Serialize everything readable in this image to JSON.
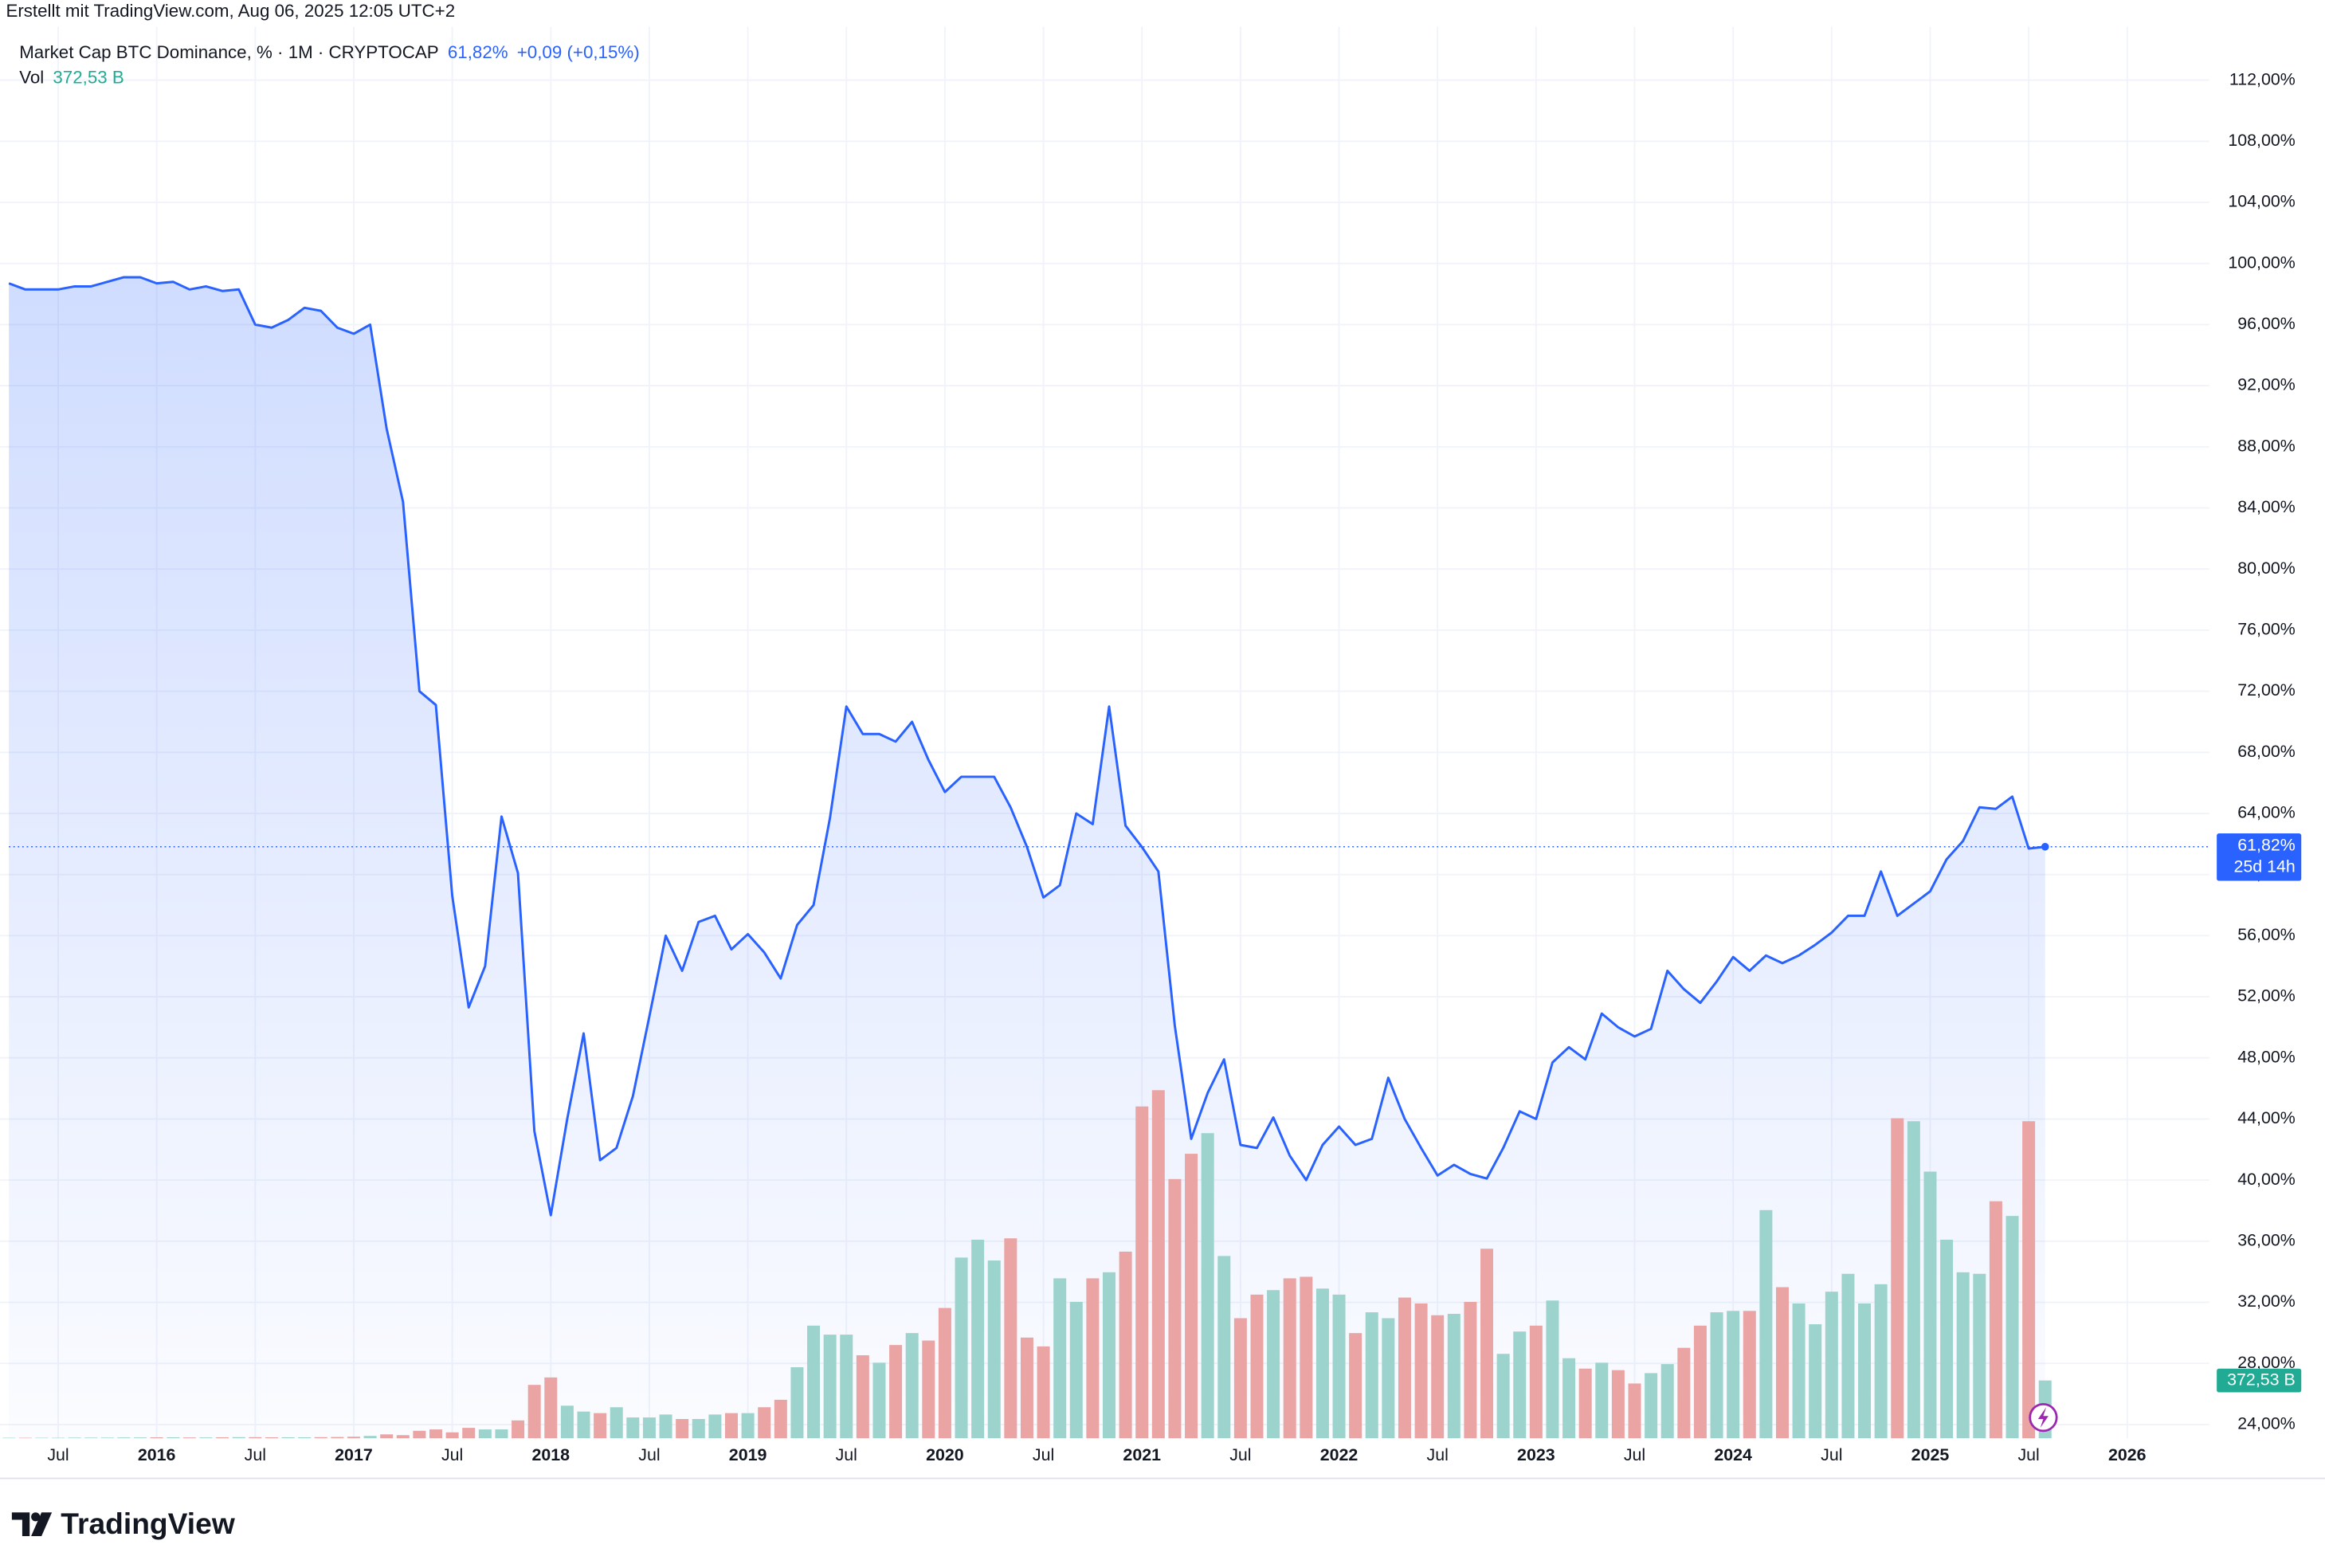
{
  "header": {
    "created": "Erstellt mit TradingView.com, Aug 06, 2025 12:05 UTC+2"
  },
  "footer": {
    "logo": "TradingView"
  },
  "chart_data": {
    "type": "line",
    "x": [
      "2015-04",
      "2015-05",
      "2015-06",
      "2015-07",
      "2015-08",
      "2015-09",
      "2015-10",
      "2015-11",
      "2015-12",
      "2016-01",
      "2016-02",
      "2016-03",
      "2016-04",
      "2016-05",
      "2016-06",
      "2016-07",
      "2016-08",
      "2016-09",
      "2016-10",
      "2016-11",
      "2016-12",
      "2017-01",
      "2017-02",
      "2017-03",
      "2017-04",
      "2017-05",
      "2017-06",
      "2017-07",
      "2017-08",
      "2017-09",
      "2017-10",
      "2017-11",
      "2017-12",
      "2018-01",
      "2018-02",
      "2018-03",
      "2018-04",
      "2018-05",
      "2018-06",
      "2018-07",
      "2018-08",
      "2018-09",
      "2018-10",
      "2018-11",
      "2018-12",
      "2019-01",
      "2019-02",
      "2019-03",
      "2019-04",
      "2019-05",
      "2019-06",
      "2019-07",
      "2019-08",
      "2019-09",
      "2019-10",
      "2019-11",
      "2019-12",
      "2020-01",
      "2020-02",
      "2020-03",
      "2020-04",
      "2020-05",
      "2020-06",
      "2020-07",
      "2020-08",
      "2020-09",
      "2020-10",
      "2020-11",
      "2020-12",
      "2021-01",
      "2021-02",
      "2021-03",
      "2021-04",
      "2021-05",
      "2021-06",
      "2021-07",
      "2021-08",
      "2021-09",
      "2021-10",
      "2021-11",
      "2021-12",
      "2022-01",
      "2022-02",
      "2022-03",
      "2022-04",
      "2022-05",
      "2022-06",
      "2022-07",
      "2022-08",
      "2022-09",
      "2022-10",
      "2022-11",
      "2022-12",
      "2023-01",
      "2023-02",
      "2023-03",
      "2023-04",
      "2023-05",
      "2023-06",
      "2023-07",
      "2023-08",
      "2023-09",
      "2023-10",
      "2023-11",
      "2023-12",
      "2024-01",
      "2024-02",
      "2024-03",
      "2024-04",
      "2024-05",
      "2024-06",
      "2024-07",
      "2024-08",
      "2024-09",
      "2024-10",
      "2024-11",
      "2024-12",
      "2025-01",
      "2025-02",
      "2025-03",
      "2025-04",
      "2025-05",
      "2025-06",
      "2025-07",
      "2025-08"
    ],
    "series": [
      {
        "name": "Market Cap BTC Dominance, % · 1M · CRYPTOCAP",
        "color": "#2962ff",
        "values": [
          98.7,
          98.3,
          98.3,
          98.3,
          98.5,
          98.5,
          98.8,
          99.1,
          99.1,
          98.7,
          98.8,
          98.3,
          98.5,
          98.2,
          98.3,
          96.0,
          95.8,
          96.3,
          97.1,
          96.9,
          95.8,
          95.4,
          96.0,
          89.2,
          84.4,
          72.0,
          71.1,
          58.6,
          51.3,
          54.0,
          63.8,
          60.1,
          43.2,
          37.7,
          44.0,
          49.6,
          41.3,
          42.1,
          45.5,
          50.7,
          56.0,
          53.7,
          56.9,
          57.3,
          55.1,
          56.1,
          54.9,
          53.2,
          56.7,
          58.0,
          63.7,
          71.0,
          69.2,
          69.2,
          68.7,
          70.0,
          67.5,
          65.4,
          66.4,
          66.4,
          66.4,
          64.4,
          61.8,
          58.5,
          59.3,
          64.0,
          63.3,
          71.0,
          63.2,
          61.8,
          60.2,
          50.1,
          42.7,
          45.7,
          47.9,
          42.3,
          42.1,
          44.1,
          41.6,
          40.0,
          42.3,
          43.5,
          42.3,
          42.7,
          46.7,
          44.0,
          42.1,
          40.3,
          41.0,
          40.4,
          40.1,
          42.1,
          44.5,
          44.0,
          47.7,
          48.7,
          47.9,
          50.9,
          50.0,
          49.4,
          49.9,
          53.7,
          52.5,
          51.6,
          53.0,
          54.6,
          53.7,
          54.7,
          54.2,
          54.7,
          55.4,
          56.2,
          57.3,
          57.3,
          60.2,
          57.3,
          58.1,
          58.9,
          61.0,
          62.2,
          64.4,
          64.3,
          65.1,
          61.7,
          61.82
        ]
      },
      {
        "name": "Vol",
        "axis": "volume",
        "up_color": "#9dd3cd",
        "down_color": "#eba4a4",
        "values": [
          3,
          3,
          3,
          3,
          4,
          4,
          4,
          5,
          5,
          6,
          6,
          5,
          5,
          6,
          7,
          7,
          6,
          6,
          6,
          7,
          8,
          10,
          15,
          25,
          20,
          48,
          57,
          38,
          67,
          57,
          57,
          115,
          344,
          392,
          210,
          172,
          162,
          200,
          134,
          134,
          153,
          124,
          124,
          153,
          162,
          162,
          200,
          248,
          458,
          726,
          668,
          668,
          535,
          487,
          601,
          678,
          630,
          840,
          1165,
          1280,
          1146,
          1289,
          649,
          592,
          1031,
          879,
          1031,
          1070,
          1203,
          2139,
          2244,
          1671,
          1834,
          1967,
          1175,
          774,
          926,
          955,
          1031,
          1041,
          965,
          926,
          678,
          812,
          774,
          907,
          869,
          793,
          802,
          879,
          1222,
          544,
          688,
          726,
          888,
          516,
          449,
          487,
          439,
          353,
          420,
          478,
          583,
          726,
          812,
          821,
          821,
          1471,
          974,
          869,
          735,
          945,
          1060,
          869,
          993,
          2063,
          2044,
          1719,
          1280,
          1070,
          1060,
          1528,
          1433,
          2044,
          372.53
        ]
      }
    ],
    "legend": {
      "last_label": "61,82%",
      "change": "+0,09 (+0,15%)",
      "volume_last_label": "372,53 B"
    },
    "price_tag": {
      "countdown": "25d 14h"
    },
    "xlim": [
      "2015-04",
      "2026-06"
    ],
    "xticks": [
      {
        "value": "2015-07",
        "label": "Jul"
      },
      {
        "value": "2016-01",
        "label": "2016"
      },
      {
        "value": "2016-07",
        "label": "Jul"
      },
      {
        "value": "2017-01",
        "label": "2017"
      },
      {
        "value": "2017-07",
        "label": "Jul"
      },
      {
        "value": "2018-01",
        "label": "2018"
      },
      {
        "value": "2018-07",
        "label": "Jul"
      },
      {
        "value": "2019-01",
        "label": "2019"
      },
      {
        "value": "2019-07",
        "label": "Jul"
      },
      {
        "value": "2020-01",
        "label": "2020"
      },
      {
        "value": "2020-07",
        "label": "Jul"
      },
      {
        "value": "2021-01",
        "label": "2021"
      },
      {
        "value": "2021-07",
        "label": "Jul"
      },
      {
        "value": "2022-01",
        "label": "2022"
      },
      {
        "value": "2022-07",
        "label": "Jul"
      },
      {
        "value": "2023-01",
        "label": "2023"
      },
      {
        "value": "2023-07",
        "label": "Jul"
      },
      {
        "value": "2024-01",
        "label": "2024"
      },
      {
        "value": "2024-07",
        "label": "Jul"
      },
      {
        "value": "2025-01",
        "label": "2025"
      },
      {
        "value": "2025-07",
        "label": "Jul"
      },
      {
        "value": "2026-01",
        "label": "2026"
      }
    ],
    "ylim": [
      23.1,
      115.5
    ],
    "yticks": [
      {
        "value": 24,
        "label": "24,00%"
      },
      {
        "value": 28,
        "label": "28,00%"
      },
      {
        "value": 32,
        "label": "32,00%"
      },
      {
        "value": 36,
        "label": "36,00%"
      },
      {
        "value": 40,
        "label": "40,00%"
      },
      {
        "value": 44,
        "label": "44,00%"
      },
      {
        "value": 48,
        "label": "48,00%"
      },
      {
        "value": 52,
        "label": "52,00%"
      },
      {
        "value": 56,
        "label": "56,00%"
      },
      {
        "value": 60,
        "label": "60,00%"
      },
      {
        "value": 64,
        "label": "64,00%"
      },
      {
        "value": 68,
        "label": "68,00%"
      },
      {
        "value": 72,
        "label": "72,00%"
      },
      {
        "value": 76,
        "label": "76,00%"
      },
      {
        "value": 80,
        "label": "80,00%"
      },
      {
        "value": 84,
        "label": "84,00%"
      },
      {
        "value": 88,
        "label": "88,00%"
      },
      {
        "value": 92,
        "label": "92,00%"
      },
      {
        "value": 96,
        "label": "96,00%"
      },
      {
        "value": 100,
        "label": "100,00%"
      },
      {
        "value": 104,
        "label": "104,00%"
      },
      {
        "value": 108,
        "label": "108,00%"
      },
      {
        "value": 112,
        "label": "112,00%"
      }
    ],
    "volume_ylim": [
      0,
      9100
    ],
    "grid": true,
    "area_fill": true
  }
}
